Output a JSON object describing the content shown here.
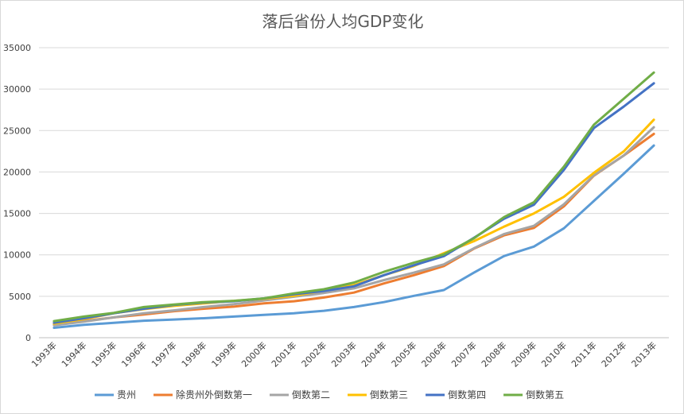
{
  "chart_data": {
    "type": "line",
    "title": "落后省份人均GDP变化",
    "xlabel": "",
    "ylabel": "",
    "ylim": [
      0,
      35000
    ],
    "yticks": [
      0,
      5000,
      10000,
      15000,
      20000,
      25000,
      30000,
      35000
    ],
    "grid": true,
    "legend_position": "bottom",
    "categories": [
      "1993年",
      "1994年",
      "1995年",
      "1996年",
      "1997年",
      "1998年",
      "1999年",
      "2000年",
      "2001年",
      "2002年",
      "2003年",
      "2004年",
      "2005年",
      "2006年",
      "2007年",
      "2008年",
      "2009年",
      "2010年",
      "2011年",
      "2012年",
      "2013年"
    ],
    "series": [
      {
        "name": "贵州",
        "color": "#5b9bd5",
        "values": [
          1200,
          1550,
          1800,
          2050,
          2200,
          2350,
          2550,
          2750,
          2950,
          3250,
          3700,
          4300,
          5050,
          5750,
          7850,
          9850,
          11000,
          13200,
          16500,
          19800,
          23200
        ]
      },
      {
        "name": "除贵州外倒数第一",
        "color": "#ed7d31",
        "values": [
          1600,
          2000,
          2450,
          2800,
          3200,
          3500,
          3750,
          4150,
          4400,
          4850,
          5450,
          6550,
          7550,
          8650,
          10750,
          12350,
          13250,
          15850,
          19550,
          22000,
          24600
        ]
      },
      {
        "name": "倒数第二",
        "color": "#a5a5a5",
        "values": [
          1500,
          1950,
          2450,
          2950,
          3300,
          3700,
          4050,
          4500,
          4950,
          5400,
          5950,
          6950,
          7850,
          8850,
          10800,
          12500,
          13500,
          16100,
          19600,
          22000,
          25400
        ]
      },
      {
        "name": "倒数第三",
        "color": "#ffc000",
        "values": [
          1700,
          2250,
          2950,
          3450,
          3850,
          4150,
          4450,
          4700,
          5050,
          5700,
          6350,
          7550,
          8650,
          10200,
          11650,
          13400,
          15000,
          17000,
          19900,
          22500,
          26300
        ]
      },
      {
        "name": "倒数第四",
        "color": "#4472c4",
        "values": [
          1800,
          2350,
          2950,
          3500,
          3950,
          4250,
          4400,
          4750,
          5250,
          5650,
          6200,
          7550,
          8750,
          9850,
          12050,
          14350,
          16050,
          20250,
          25300,
          27900,
          30700
        ]
      },
      {
        "name": "倒数第五",
        "color": "#70ad47",
        "values": [
          2000,
          2550,
          3000,
          3700,
          4000,
          4300,
          4450,
          4750,
          5350,
          5850,
          6650,
          7950,
          9050,
          10050,
          12000,
          14550,
          16350,
          20650,
          25700,
          28850,
          32000
        ]
      }
    ]
  }
}
